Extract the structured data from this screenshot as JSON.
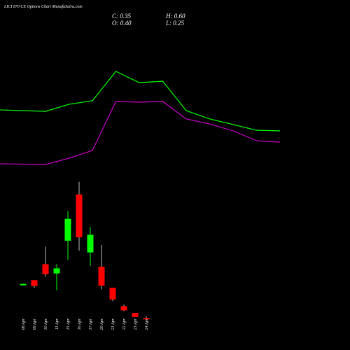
{
  "chart_data": [
    {
      "type": "candlestick",
      "title": "LICI 870 CE Options Chart MunafaSutra.com",
      "ohlc_labels": {
        "close": "C: 0.35",
        "high": "H: 0.60",
        "open": "O: 0.40",
        "low": "L: 0.25"
      },
      "categories": [
        "08 Apr",
        "09 Apr",
        "10 Apr",
        "11 Apr",
        "15 Apr",
        "16 Apr",
        "17 Apr",
        "20 Apr",
        "21 Apr",
        "22 Apr",
        "23 Apr",
        "24 Apr"
      ],
      "open": [
        4.35,
        4.9,
        6.8,
        5.7,
        9.6,
        15.1,
        8.2,
        6.5,
        4.0,
        1.8,
        1.0,
        0.4
      ],
      "high": [
        4.5,
        4.9,
        8.9,
        6.8,
        13.1,
        16.6,
        11.2,
        9.1,
        4.0,
        2.0,
        1.0,
        0.6
      ],
      "low": [
        4.3,
        4.0,
        5.3,
        3.7,
        7.3,
        8.4,
        6.6,
        3.8,
        2.4,
        1.2,
        0.5,
        0.25
      ],
      "close": [
        4.45,
        4.2,
        5.6,
        6.3,
        12.2,
        10.0,
        10.3,
        4.25,
        2.6,
        1.3,
        0.5,
        0.35
      ],
      "up_color": "#00ff00",
      "down_color": "#ff0000",
      "ylim": [
        0,
        17
      ]
    },
    {
      "type": "line",
      "categories": [
        null,
        null,
        null,
        null,
        null,
        null,
        null,
        null,
        null,
        null,
        null,
        null
      ],
      "series": [
        {
          "color": "#00ee00",
          "values": [
            54.7,
            53.5,
            59.4,
            62.4,
            87.1,
            77.6,
            78.8,
            54.1,
            47.1,
            42.4,
            37.6,
            37.1
          ]
        },
        {
          "color": "#bb00bb",
          "values": [
            9.4,
            8.8,
            14.1,
            20.6,
            61.8,
            61.2,
            61.8,
            47.1,
            42.9,
            37.1,
            28.8,
            27.6
          ]
        }
      ],
      "ylim": [
        0,
        100
      ]
    }
  ]
}
